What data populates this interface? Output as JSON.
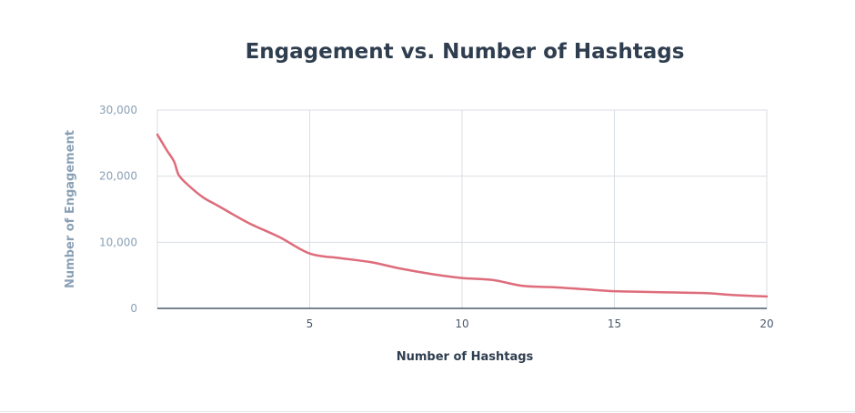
{
  "colors": {
    "title": "#2f3e4f",
    "axis_label_x": "#2f3e4f",
    "axis_label_y": "#8aa0b5",
    "tick_label": "#8aa0b5",
    "grid": "#d9dee3",
    "baseline": "#4a5a6b",
    "line": "#de6c7b"
  },
  "chart_data": {
    "type": "line",
    "title": "Engagement vs. Number of Hashtags",
    "xlabel": "Number of Hashtags",
    "ylabel": "Number of Engagement",
    "xlim": [
      0,
      20
    ],
    "ylim": [
      0,
      30000
    ],
    "x_ticks": [
      5,
      10,
      15,
      20
    ],
    "x_tick_labels": [
      "5",
      "10",
      "15",
      "20"
    ],
    "y_ticks": [
      0,
      10000,
      20000,
      30000
    ],
    "y_tick_labels": [
      "0",
      "10,000",
      "20,000",
      "30,000"
    ],
    "grid": true,
    "legend": "none",
    "series": [
      {
        "x": [
          0,
          0.3,
          0.55,
          0.7,
          1.0,
          1.5,
          2.0,
          3.0,
          4.0,
          5.0,
          6.0,
          7.0,
          8.0,
          9.0,
          10.0,
          11.0,
          12.0,
          13.0,
          14.0,
          15.0,
          16.0,
          17.0,
          18.0,
          19.0,
          20.0
        ],
        "y": [
          26300,
          24000,
          22200,
          20200,
          18700,
          16800,
          15500,
          12900,
          10800,
          8300,
          7600,
          7000,
          6000,
          5200,
          4600,
          4300,
          3400,
          3200,
          2900,
          2600,
          2500,
          2400,
          2300,
          2000,
          1800
        ]
      }
    ]
  }
}
